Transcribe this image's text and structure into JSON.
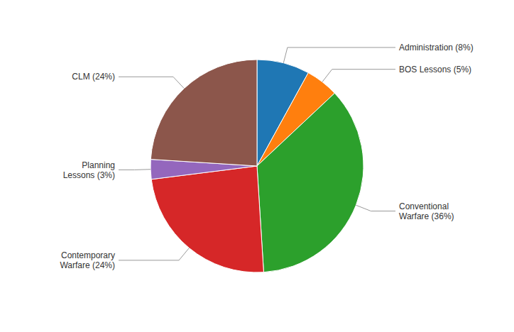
{
  "chart_data": {
    "type": "pie",
    "categories": [
      "Administration (8%)",
      "BOS Lessons (5%)",
      "Conventional\nWarfare (36%)",
      "Contemporary\nWarfare (24%)",
      "Planning\nLessons (3%)",
      "CLM (24%)"
    ],
    "values": [
      8,
      5,
      36,
      24,
      3,
      24
    ]
  }
}
